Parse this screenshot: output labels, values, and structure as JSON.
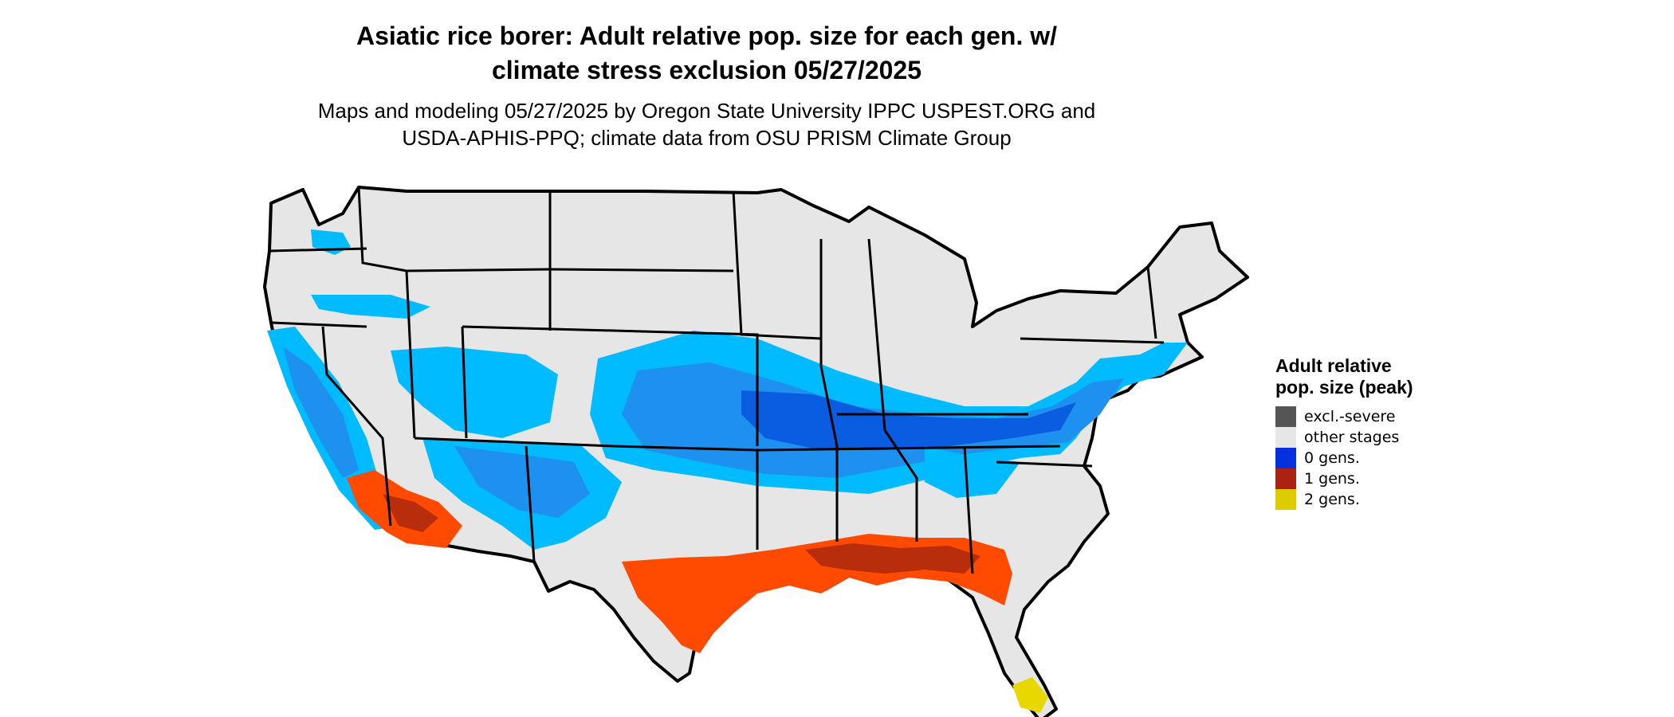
{
  "title": {
    "line1": "Asiatic rice borer: Adult relative pop. size for each gen. w/",
    "line2": "climate stress exclusion 05/27/2025"
  },
  "subtitle": {
    "line1": "Maps and modeling 05/27/2025 by Oregon State University IPPC USPEST.ORG and",
    "line2": "USDA-APHIS-PPQ; climate data from OSU PRISM Climate Group"
  },
  "legend": {
    "title": "Adult relative pop. size (peak)",
    "items": [
      {
        "label": "excl.-severe",
        "color": "#555555"
      },
      {
        "label": "other stages",
        "color": "#e6e6e6"
      },
      {
        "label": "0 gens.",
        "color": "#0033dd"
      },
      {
        "label": "1 gens.",
        "color": "#aa2211"
      },
      {
        "label": "2 gens.",
        "color": "#ddcc00"
      }
    ]
  },
  "map": {
    "colors": {
      "land": "#e6e6e6",
      "border": "#000000",
      "zero_gen_light": "#00bbff",
      "zero_gen_mid": "#1e90f0",
      "zero_gen_dark": "#0a5ce0",
      "one_gen": "#ff4a00",
      "one_gen_dark": "#b82e0c",
      "two_gen": "#e8d800"
    }
  }
}
